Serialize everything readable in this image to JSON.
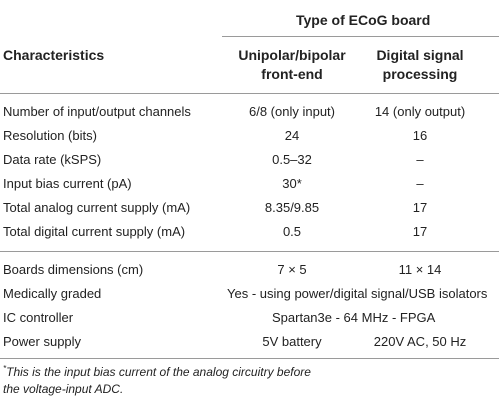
{
  "header": {
    "group_title": "Type of ECoG board",
    "col1": "Characteristics",
    "col2_line1": "Unipolar/bipolar",
    "col2_line2": "front-end",
    "col3_line1": "Digital signal",
    "col3_line2": "processing"
  },
  "rows": [
    {
      "label": "Number of input/output channels",
      "v1": "6/8 (only input)",
      "v2": "14 (only output)"
    },
    {
      "label": "Resolution (bits)",
      "v1": "24",
      "v2": "16"
    },
    {
      "label": "Data rate (kSPS)",
      "v1": "0.5–32",
      "v2": "–"
    },
    {
      "label": "Input bias current (pA)",
      "v1": "30*",
      "v2": "–"
    },
    {
      "label": "Total analog current supply (mA)",
      "v1": "8.35/9.85",
      "v2": "17"
    },
    {
      "label": "Total digital current supply (mA)",
      "v1": "0.5",
      "v2": "17"
    }
  ],
  "rows2": [
    {
      "label": "Boards dimensions (cm)",
      "v1": "7 × 5",
      "v2": "11 × 14"
    },
    {
      "label": "Medically graded",
      "span": "Yes - using power/digital signal/USB isolators"
    },
    {
      "label": "IC controller",
      "span": "Spartan3e - 64 MHz - FPGA"
    },
    {
      "label": "Power supply",
      "v1": "5V battery",
      "v2": "220V AC, 50 Hz"
    }
  ],
  "footnote": {
    "marker": "*",
    "line1": "This is the input bias current of the analog circuitry before",
    "line2": "the voltage-input ADC."
  }
}
